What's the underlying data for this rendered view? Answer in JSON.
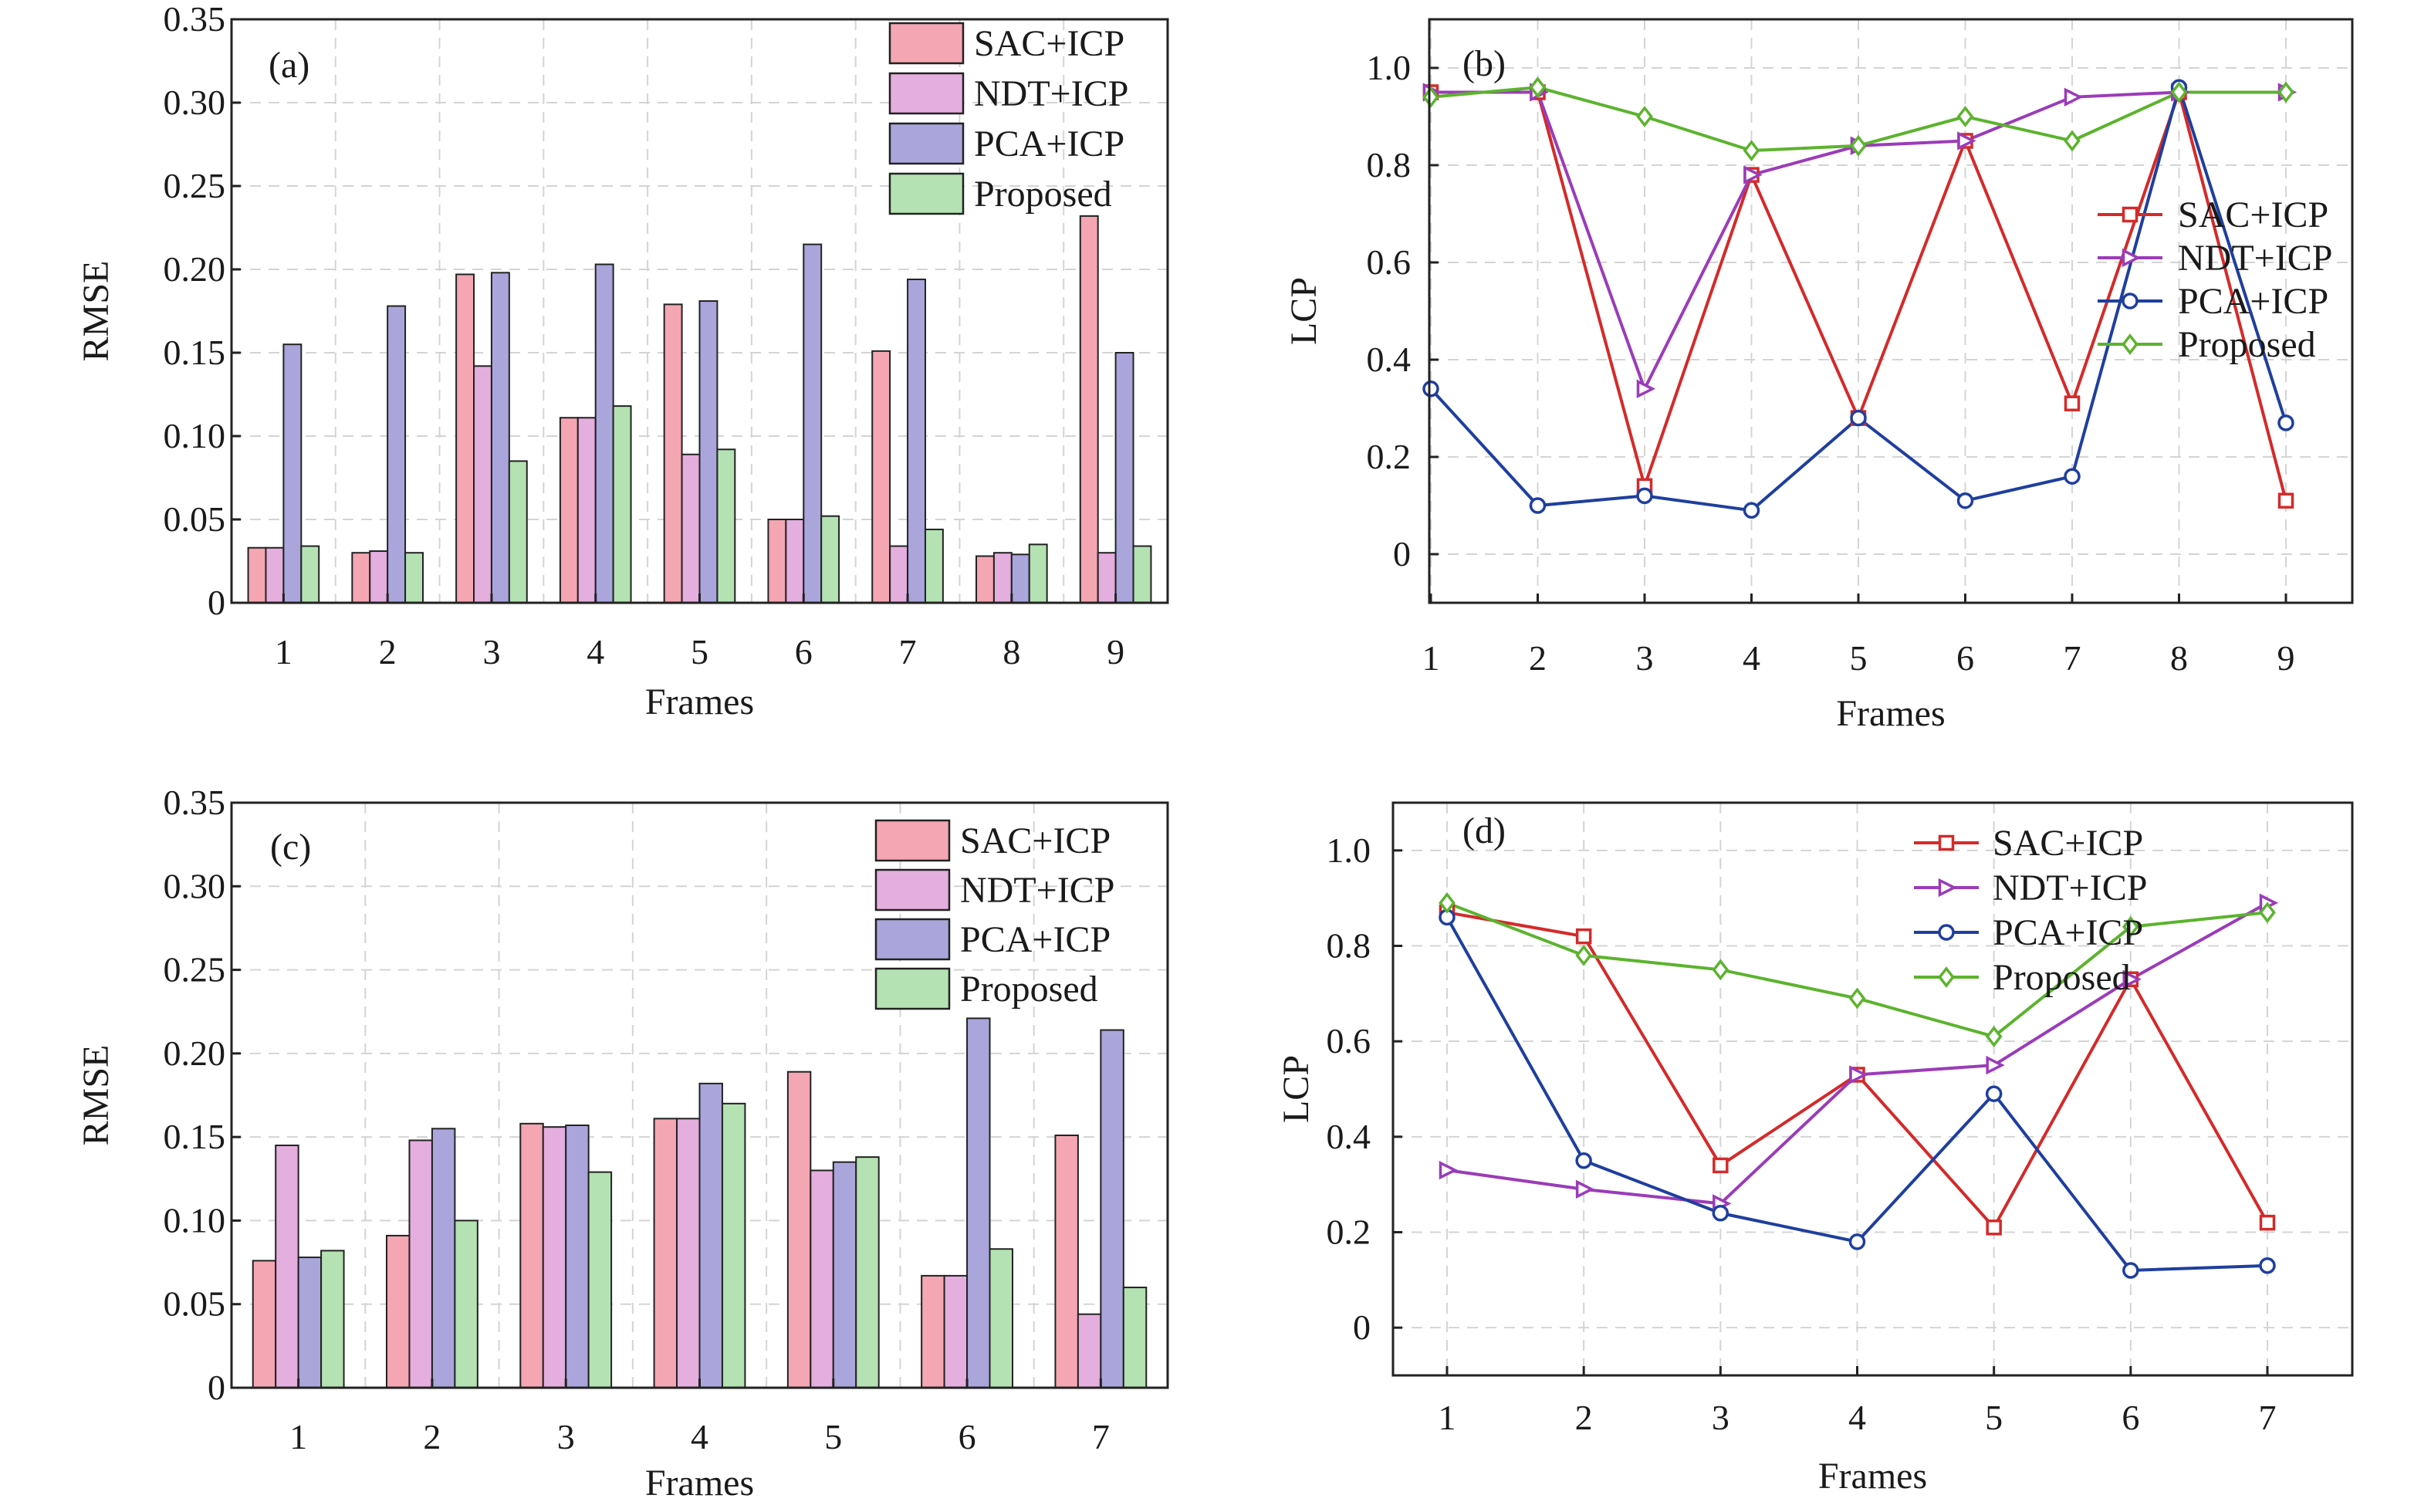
{
  "colors": {
    "SAC+ICP": "#f4a6b2",
    "NDT+ICP": "#e4aede",
    "PCA+ICP": "#aaa6dc",
    "Proposed": "#b4e2b2",
    "SAC+ICP_line": "#d42a2a",
    "NDT+ICP_line": "#9a3cb8",
    "PCA+ICP_line": "#1f3f9e",
    "Proposed_line": "#5cb32e"
  },
  "chart_data": [
    {
      "type": "bar",
      "panel_label": "(a)",
      "xlabel": "Frames",
      "ylabel": "RMSE",
      "categories": [
        "1",
        "2",
        "3",
        "4",
        "5",
        "6",
        "7",
        "8",
        "9"
      ],
      "ylim": [
        0,
        0.35
      ],
      "yticks": [
        "0",
        "0.05",
        "0.10",
        "0.15",
        "0.20",
        "0.25",
        "0.30",
        "0.35"
      ],
      "grid": true,
      "legend_position": "top-right",
      "series": [
        {
          "name": "SAC+ICP",
          "values": [
            0.033,
            0.03,
            0.197,
            0.111,
            0.179,
            0.05,
            0.151,
            0.028,
            0.232
          ]
        },
        {
          "name": "NDT+ICP",
          "values": [
            0.033,
            0.031,
            0.142,
            0.111,
            0.089,
            0.05,
            0.034,
            0.03,
            0.03
          ]
        },
        {
          "name": "PCA+ICP",
          "values": [
            0.155,
            0.178,
            0.198,
            0.203,
            0.181,
            0.215,
            0.194,
            0.029,
            0.15
          ]
        },
        {
          "name": "Proposed",
          "values": [
            0.034,
            0.03,
            0.085,
            0.118,
            0.092,
            0.052,
            0.044,
            0.035,
            0.034
          ]
        }
      ]
    },
    {
      "type": "line",
      "panel_label": "(b)",
      "xlabel": "Frames",
      "ylabel": "LCP",
      "x": [
        1,
        2,
        3,
        4,
        5,
        6,
        7,
        8,
        9
      ],
      "ylim": [
        -0.1,
        1.1
      ],
      "yticks": [
        "0",
        "0.2",
        "0.4",
        "0.6",
        "0.8",
        "1.0"
      ],
      "grid": true,
      "legend_position": "right",
      "series": [
        {
          "name": "SAC+ICP",
          "values": [
            0.95,
            0.95,
            0.14,
            0.78,
            0.28,
            0.85,
            0.31,
            0.95,
            0.11
          ]
        },
        {
          "name": "NDT+ICP",
          "values": [
            0.95,
            0.95,
            0.34,
            0.78,
            0.84,
            0.85,
            0.94,
            0.95,
            0.95
          ]
        },
        {
          "name": "PCA+ICP",
          "values": [
            0.34,
            0.1,
            0.12,
            0.09,
            0.28,
            0.11,
            0.16,
            0.96,
            0.27
          ]
        },
        {
          "name": "Proposed",
          "values": [
            0.94,
            0.96,
            0.9,
            0.83,
            0.84,
            0.9,
            0.85,
            0.95,
            0.95
          ]
        }
      ]
    },
    {
      "type": "bar",
      "panel_label": "(c)",
      "xlabel": "Frames",
      "ylabel": "RMSE",
      "categories": [
        "1",
        "2",
        "3",
        "4",
        "5",
        "6",
        "7"
      ],
      "ylim": [
        0,
        0.35
      ],
      "yticks": [
        "0",
        "0.05",
        "0.10",
        "0.15",
        "0.20",
        "0.25",
        "0.30",
        "0.35"
      ],
      "grid": true,
      "legend_position": "top-right",
      "series": [
        {
          "name": "SAC+ICP",
          "values": [
            0.076,
            0.091,
            0.158,
            0.161,
            0.189,
            0.067,
            0.151
          ]
        },
        {
          "name": "NDT+ICP",
          "values": [
            0.145,
            0.148,
            0.156,
            0.161,
            0.13,
            0.067,
            0.044
          ]
        },
        {
          "name": "PCA+ICP",
          "values": [
            0.078,
            0.155,
            0.157,
            0.182,
            0.135,
            0.221,
            0.214
          ]
        },
        {
          "name": "Proposed",
          "values": [
            0.082,
            0.1,
            0.129,
            0.17,
            0.138,
            0.083,
            0.06
          ]
        }
      ]
    },
    {
      "type": "line",
      "panel_label": "(d)",
      "xlabel": "Frames",
      "ylabel": "LCP",
      "x": [
        1,
        2,
        3,
        4,
        5,
        6,
        7
      ],
      "ylim": [
        -0.1,
        1.1
      ],
      "yticks": [
        "0",
        "0.2",
        "0.4",
        "0.6",
        "0.8",
        "1.0"
      ],
      "grid": true,
      "legend_position": "top-center",
      "series": [
        {
          "name": "SAC+ICP",
          "values": [
            0.87,
            0.82,
            0.34,
            0.53,
            0.21,
            0.73,
            0.22
          ]
        },
        {
          "name": "NDT+ICP",
          "values": [
            0.33,
            0.29,
            0.26,
            0.53,
            0.55,
            0.73,
            0.89
          ]
        },
        {
          "name": "PCA+ICP",
          "values": [
            0.86,
            0.35,
            0.24,
            0.18,
            0.49,
            0.12,
            0.13
          ]
        },
        {
          "name": "Proposed",
          "values": [
            0.89,
            0.78,
            0.75,
            0.69,
            0.61,
            0.84,
            0.87
          ]
        }
      ]
    }
  ]
}
